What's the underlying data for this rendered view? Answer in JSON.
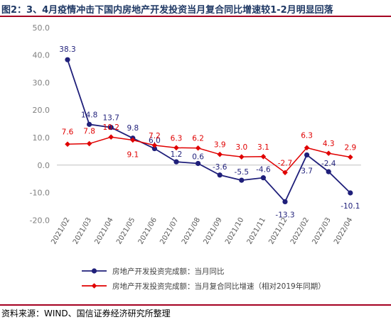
{
  "header": {
    "title": "图2：3、4月疫情冲击下国内房地产开发投资当月复合同比增速较1-2月明显回落"
  },
  "footer": {
    "source": "资料来源：WIND、国信证券经济研究所整理"
  },
  "chart_data": {
    "type": "line",
    "categories": [
      "2021/02",
      "2021/03",
      "2021/04",
      "2021/05",
      "2021/06",
      "2021/07",
      "2021/08",
      "2021/09",
      "2021/10",
      "2021/11",
      "2021/12",
      "2022/02",
      "2022/03",
      "2022/04"
    ],
    "series": [
      {
        "name": "房地产开发投资完成额：当月同比",
        "color": "#1f1f7a",
        "marker": "circle",
        "values": [
          38.3,
          14.8,
          13.7,
          9.8,
          6.0,
          1.2,
          0.6,
          -3.6,
          -5.5,
          -4.6,
          -13.3,
          3.7,
          -2.4,
          -10.1
        ],
        "labels": [
          "38.3",
          "14.8",
          "13.7",
          "9.8",
          "6.0",
          "1.2",
          "0.6",
          "-3.6",
          "-5.5",
          "-4.6",
          "-13.3",
          "3.7",
          "-2.4",
          "-10.1"
        ]
      },
      {
        "name": "房地产开发投资完成额：当月复合同比增速（相对2019年同期）",
        "color": "#e00000",
        "marker": "diamond",
        "values": [
          7.6,
          7.8,
          10.2,
          9.1,
          7.2,
          6.3,
          6.2,
          3.9,
          3.0,
          3.1,
          -2.7,
          6.3,
          4.3,
          2.9
        ],
        "labels": [
          "7.6",
          "7.8",
          "10.2",
          "9.1",
          "7.2",
          "6.3",
          "6.2",
          "3.9",
          "3.0",
          "3.1",
          "-2.7",
          "6.3",
          "4.3",
          "2.9"
        ]
      }
    ],
    "y_ticks": [
      "50.0",
      "40.0",
      "30.0",
      "20.0",
      "10.0",
      "0.0",
      "-10.0",
      "-20.0"
    ],
    "ylim": [
      -20,
      50
    ],
    "grid": false,
    "legend_position": "bottom"
  }
}
